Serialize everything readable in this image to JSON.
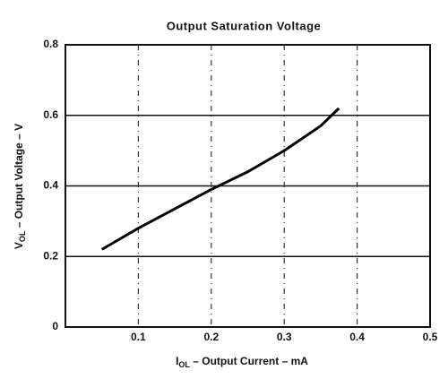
{
  "chart_data": {
    "type": "line",
    "title": "Output Saturation Voltage",
    "ylabel": {
      "main": "V",
      "sub": "OL",
      "rest": " – Output Voltage – V"
    },
    "xlabel": {
      "main": "I",
      "sub": "OL",
      "rest": " – Output Current – mA"
    },
    "x": [
      0.05,
      0.1,
      0.15,
      0.2,
      0.25,
      0.3,
      0.35,
      0.375
    ],
    "series": [
      {
        "color": "#000000",
        "values": [
          0.22,
          0.28,
          0.335,
          0.39,
          0.44,
          0.5,
          0.57,
          0.62
        ]
      }
    ],
    "xlim": [
      0,
      0.5
    ],
    "xticks": [
      0.1,
      0.2,
      0.3,
      0.4,
      0.5
    ],
    "ylim": [
      0,
      0.8
    ],
    "yticks": [
      0,
      0.2,
      0.4,
      0.6,
      0.8
    ],
    "grid": true
  }
}
